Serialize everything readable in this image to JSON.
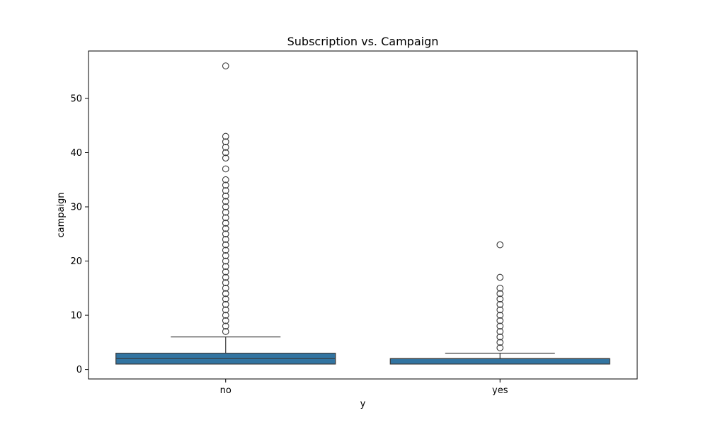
{
  "chart_data": {
    "type": "box",
    "title": "Subscription vs. Campaign",
    "xlabel": "y",
    "ylabel": "campaign",
    "categories": [
      "no",
      "yes"
    ],
    "ylim": [
      -1.75,
      58.75
    ],
    "yticks": [
      0,
      10,
      20,
      30,
      40,
      50
    ],
    "grid": false,
    "box_color": "#3274a1",
    "box_edge_color": "#3a3a3a",
    "boxes": [
      {
        "category": "no",
        "min": 1,
        "q1": 1,
        "median": 2,
        "q3": 3,
        "max": 6,
        "outliers": [
          7,
          8,
          9,
          10,
          11,
          12,
          13,
          14,
          15,
          16,
          17,
          18,
          19,
          20,
          21,
          22,
          23,
          24,
          25,
          26,
          27,
          28,
          29,
          30,
          31,
          32,
          33,
          34,
          35,
          37,
          39,
          40,
          41,
          42,
          43,
          56
        ]
      },
      {
        "category": "yes",
        "min": 1,
        "q1": 1,
        "median": 2,
        "q3": 2,
        "max": 3,
        "outliers": [
          4,
          5,
          6,
          7,
          8,
          9,
          10,
          11,
          12,
          13,
          14,
          15,
          17,
          23
        ]
      }
    ]
  }
}
